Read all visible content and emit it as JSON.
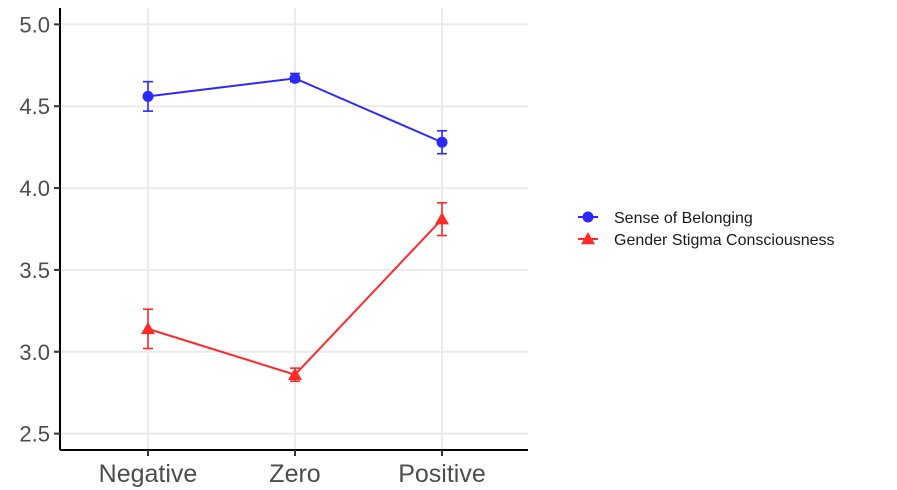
{
  "chart_data": {
    "type": "line",
    "title": "",
    "xlabel": "",
    "ylabel": "",
    "categories": [
      "Negative",
      "Zero",
      "Positive"
    ],
    "ylim": [
      2.4,
      5.1
    ],
    "yticks": [
      2.5,
      3.0,
      3.5,
      4.0,
      4.5,
      5.0
    ],
    "ytick_labels": [
      "2.5",
      "3.0",
      "3.5",
      "4.0",
      "4.5",
      "5.0"
    ],
    "grid": true,
    "legend_position": "right",
    "error_bars": true,
    "series": [
      {
        "name": "Sense of Belonging",
        "color": "#2a2aff",
        "marker": "circle",
        "values": [
          4.56,
          4.67,
          4.28
        ],
        "error_low": [
          4.47,
          4.65,
          4.21
        ],
        "error_high": [
          4.65,
          4.7,
          4.35
        ]
      },
      {
        "name": "Gender Stigma Consciousness",
        "color": "#ff2a2a",
        "marker": "triangle",
        "values": [
          3.14,
          2.86,
          3.81
        ],
        "error_low": [
          3.02,
          2.82,
          3.71
        ],
        "error_high": [
          3.26,
          2.9,
          3.91
        ]
      }
    ]
  }
}
